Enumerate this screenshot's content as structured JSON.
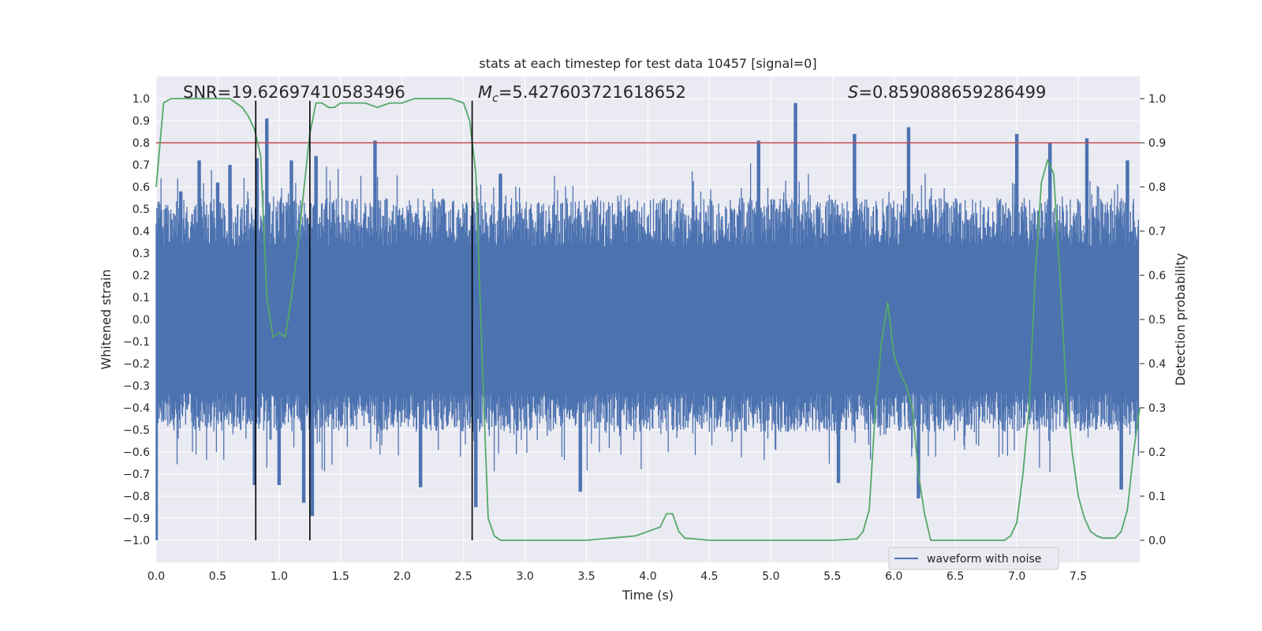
{
  "chart_data": {
    "type": "line",
    "title": "stats at each timestep for test data 10457 [signal=0]",
    "xlabel": "Time (s)",
    "ylabel_left": "Whitened strain",
    "ylabel_right": "Detection probability",
    "xlim": [
      0.0,
      8.0
    ],
    "ylim_left": [
      -1.1,
      1.1
    ],
    "ylim_right": [
      -0.05,
      1.05
    ],
    "xticks": [
      "0.0",
      "0.5",
      "1.0",
      "1.5",
      "2.0",
      "2.5",
      "3.0",
      "3.5",
      "4.0",
      "4.5",
      "5.0",
      "5.5",
      "6.0",
      "6.5",
      "7.0",
      "7.5"
    ],
    "yticks_left": [
      "1.0",
      "0.9",
      "0.8",
      "0.7",
      "0.6",
      "0.5",
      "0.4",
      "0.3",
      "0.2",
      "0.1",
      "0.0",
      "−0.1",
      "−0.2",
      "−0.3",
      "−0.4",
      "−0.5",
      "−0.6",
      "−0.7",
      "−0.8",
      "−0.9",
      "−1.0"
    ],
    "yticks_right": [
      "1.0",
      "0.9",
      "0.8",
      "0.7",
      "0.6",
      "0.5",
      "0.4",
      "0.3",
      "0.2",
      "0.1",
      "0.0"
    ],
    "grid": true,
    "annotations": {
      "snr": "SNR=19.62697410583496",
      "mc_symbol": "M",
      "mc_sub": "c",
      "mc_value": "=5.427603721618652",
      "s_symbol": "S",
      "s_value": "=0.859088659286499"
    },
    "legend": {
      "label": "waveform with noise",
      "position": "lower-right"
    },
    "threshold_probability": 0.9,
    "vertical_markers_time": [
      0.81,
      1.25,
      2.57
    ],
    "series": [
      {
        "name": "waveform with noise",
        "color": "#4c72b0",
        "axis": "left",
        "style": "noise",
        "envelope_peaks": [
          [
            0.2,
            0.58
          ],
          [
            0.35,
            0.72
          ],
          [
            0.5,
            0.62
          ],
          [
            0.6,
            0.7
          ],
          [
            0.82,
            0.73
          ],
          [
            0.9,
            0.91
          ],
          [
            1.1,
            0.72
          ],
          [
            1.3,
            0.74
          ],
          [
            1.78,
            0.81
          ],
          [
            2.8,
            0.66
          ],
          [
            4.9,
            0.81
          ],
          [
            5.2,
            0.98
          ],
          [
            5.68,
            0.84
          ],
          [
            6.12,
            0.87
          ],
          [
            7.0,
            0.84
          ],
          [
            7.27,
            0.8
          ],
          [
            7.57,
            0.82
          ],
          [
            7.9,
            0.72
          ]
        ],
        "trough_peaks": [
          [
            0.0,
            -1.0
          ],
          [
            0.8,
            -0.75
          ],
          [
            1.0,
            -0.75
          ],
          [
            1.2,
            -0.83
          ],
          [
            1.27,
            -0.89
          ],
          [
            2.15,
            -0.76
          ],
          [
            2.6,
            -0.85
          ],
          [
            3.45,
            -0.78
          ],
          [
            5.55,
            -0.74
          ],
          [
            6.2,
            -0.81
          ],
          [
            7.85,
            -0.77
          ]
        ]
      },
      {
        "name": "detection probability",
        "color": "#55a868",
        "axis": "right",
        "t": [
          0.0,
          0.06,
          0.12,
          0.2,
          0.3,
          0.4,
          0.5,
          0.6,
          0.65,
          0.7,
          0.75,
          0.8,
          0.85,
          0.9,
          0.95,
          1.0,
          1.05,
          1.1,
          1.15,
          1.2,
          1.25,
          1.3,
          1.35,
          1.4,
          1.45,
          1.5,
          1.6,
          1.7,
          1.8,
          1.9,
          2.0,
          2.1,
          2.2,
          2.3,
          2.4,
          2.5,
          2.55,
          2.6,
          2.65,
          2.7,
          2.75,
          2.8,
          2.9,
          3.0,
          3.5,
          3.7,
          3.9,
          4.0,
          4.1,
          4.15,
          4.2,
          4.25,
          4.3,
          4.5,
          5.0,
          5.5,
          5.7,
          5.75,
          5.8,
          5.85,
          5.9,
          5.95,
          6.0,
          6.05,
          6.1,
          6.15,
          6.2,
          6.25,
          6.3,
          6.5,
          6.9,
          6.95,
          7.0,
          7.05,
          7.1,
          7.15,
          7.2,
          7.25,
          7.3,
          7.35,
          7.4,
          7.45,
          7.5,
          7.55,
          7.6,
          7.65,
          7.7,
          7.8,
          7.85,
          7.9,
          7.95,
          8.0
        ],
        "p": [
          0.8,
          0.99,
          1.0,
          1.0,
          1.0,
          1.0,
          1.0,
          1.0,
          0.99,
          0.98,
          0.96,
          0.93,
          0.87,
          0.55,
          0.46,
          0.47,
          0.46,
          0.55,
          0.66,
          0.79,
          0.92,
          0.99,
          0.99,
          0.98,
          0.98,
          0.99,
          0.99,
          0.99,
          0.98,
          0.99,
          0.99,
          1.0,
          1.0,
          1.0,
          1.0,
          0.99,
          0.95,
          0.83,
          0.42,
          0.05,
          0.01,
          0.0,
          0.0,
          0.0,
          0.0,
          0.005,
          0.01,
          0.02,
          0.03,
          0.06,
          0.06,
          0.02,
          0.005,
          0.0,
          0.0,
          0.0,
          0.003,
          0.02,
          0.07,
          0.3,
          0.45,
          0.54,
          0.42,
          0.38,
          0.35,
          0.3,
          0.15,
          0.06,
          0.0,
          0.0,
          0.0,
          0.01,
          0.04,
          0.15,
          0.3,
          0.6,
          0.81,
          0.86,
          0.83,
          0.6,
          0.35,
          0.2,
          0.1,
          0.05,
          0.02,
          0.01,
          0.005,
          0.005,
          0.02,
          0.07,
          0.2,
          0.3
        ]
      },
      {
        "name": "threshold",
        "color": "#c44e52",
        "axis": "right",
        "value": 0.9
      }
    ]
  }
}
